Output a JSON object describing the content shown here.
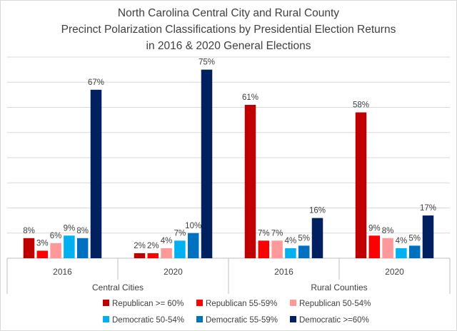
{
  "chart_data": {
    "type": "bar",
    "title_lines": [
      "North Carolina Central City and Rural County",
      "Precinct Polarization Classifications by Presidential Election Returns",
      "in 2016 & 2020 General Elections"
    ],
    "groups": [
      {
        "label": "Central Cities",
        "categories": [
          "2016",
          "2020"
        ]
      },
      {
        "label": "Rural Counties",
        "categories": [
          "2016",
          "2020"
        ]
      }
    ],
    "categories": [
      "2016",
      "2020",
      "2016",
      "2020"
    ],
    "ylim": [
      0,
      80
    ],
    "grid": true,
    "legend_position": "bottom",
    "series": [
      {
        "name": "Republican >= 60%",
        "color": "#c00000",
        "values": [
          8,
          2,
          61,
          58
        ]
      },
      {
        "name": "Republican 55-59%",
        "color": "#ff0000",
        "values": [
          3,
          2,
          7,
          9
        ]
      },
      {
        "name": "Republican 50-54%",
        "color": "#ff9999",
        "values": [
          6,
          4,
          7,
          8
        ]
      },
      {
        "name": "Democratic 50-54%",
        "color": "#00b0f0",
        "values": [
          9,
          7,
          4,
          4
        ]
      },
      {
        "name": "Democratic 55-59%",
        "color": "#0070c0",
        "values": [
          8,
          10,
          5,
          5
        ]
      },
      {
        "name": "Democratic >=60%",
        "color": "#002060",
        "values": [
          67,
          75,
          16,
          17
        ]
      }
    ],
    "data_labels": [
      [
        "8%",
        "2%",
        "61%",
        "58%"
      ],
      [
        "3%",
        "2%",
        "7%",
        "9%"
      ],
      [
        "6%",
        "4%",
        "7%",
        "8%"
      ],
      [
        "9%",
        "7%",
        "4%",
        "4%"
      ],
      [
        "8%",
        "10%",
        "5%",
        "5%"
      ],
      [
        "67%",
        "75%",
        "16%",
        "17%"
      ]
    ]
  }
}
